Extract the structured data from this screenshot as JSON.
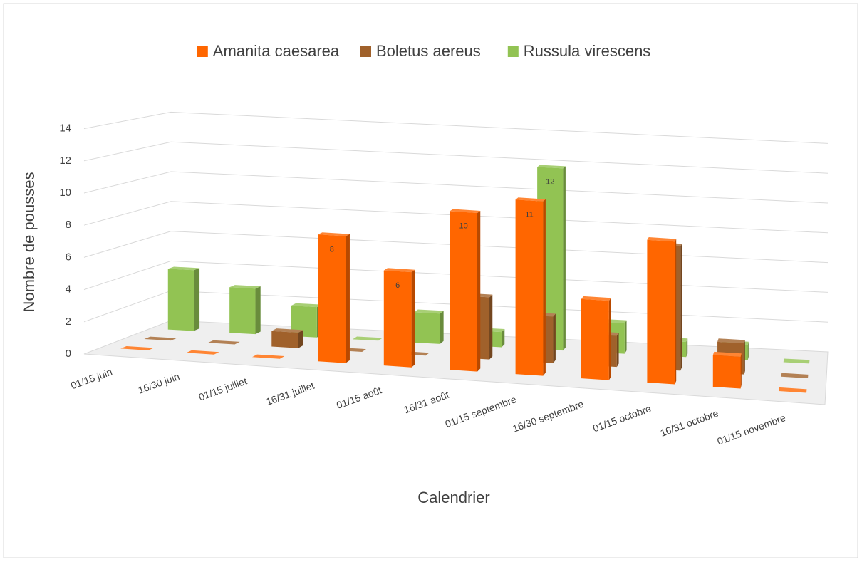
{
  "chart_data": {
    "type": "bar3d",
    "x_label": "Calendrier",
    "y_label": "Nombre de pousses",
    "categories": [
      "01/15 juin",
      "16/30 juin",
      "01/15 juillet",
      "16/31 juillet",
      "01/15 août",
      "16/31 août",
      "01/15 septembre",
      "16/30 septembre",
      "01/15 octobre",
      "16/31 octobre",
      "01/15 novembre"
    ],
    "series": [
      {
        "name": "Amanita caesarea",
        "color": "#ff6600",
        "values": [
          0,
          0,
          0,
          8,
          6,
          10,
          11,
          5,
          9,
          2,
          0
        ],
        "value_labels": [
          null,
          null,
          null,
          "8",
          "6",
          "10",
          "11",
          null,
          null,
          null,
          null
        ]
      },
      {
        "name": "Boletus aereus",
        "color": "#a0612b",
        "values": [
          0,
          0,
          1,
          0,
          0,
          4,
          3,
          2,
          8,
          2,
          0
        ],
        "value_labels": [
          null,
          null,
          null,
          null,
          null,
          null,
          null,
          "2",
          null,
          null,
          null
        ]
      },
      {
        "name": "Russula virescens",
        "color": "#92c353",
        "values": [
          4,
          3,
          2,
          0,
          2,
          1,
          12,
          2,
          1,
          1,
          0
        ],
        "value_labels": [
          null,
          null,
          null,
          null,
          null,
          "1",
          "12",
          null,
          null,
          null,
          null
        ]
      }
    ],
    "ylim": [
      0,
      14
    ],
    "yticks": [
      0,
      2,
      4,
      6,
      8,
      10,
      12,
      14
    ],
    "grid": true,
    "legend": "top"
  }
}
